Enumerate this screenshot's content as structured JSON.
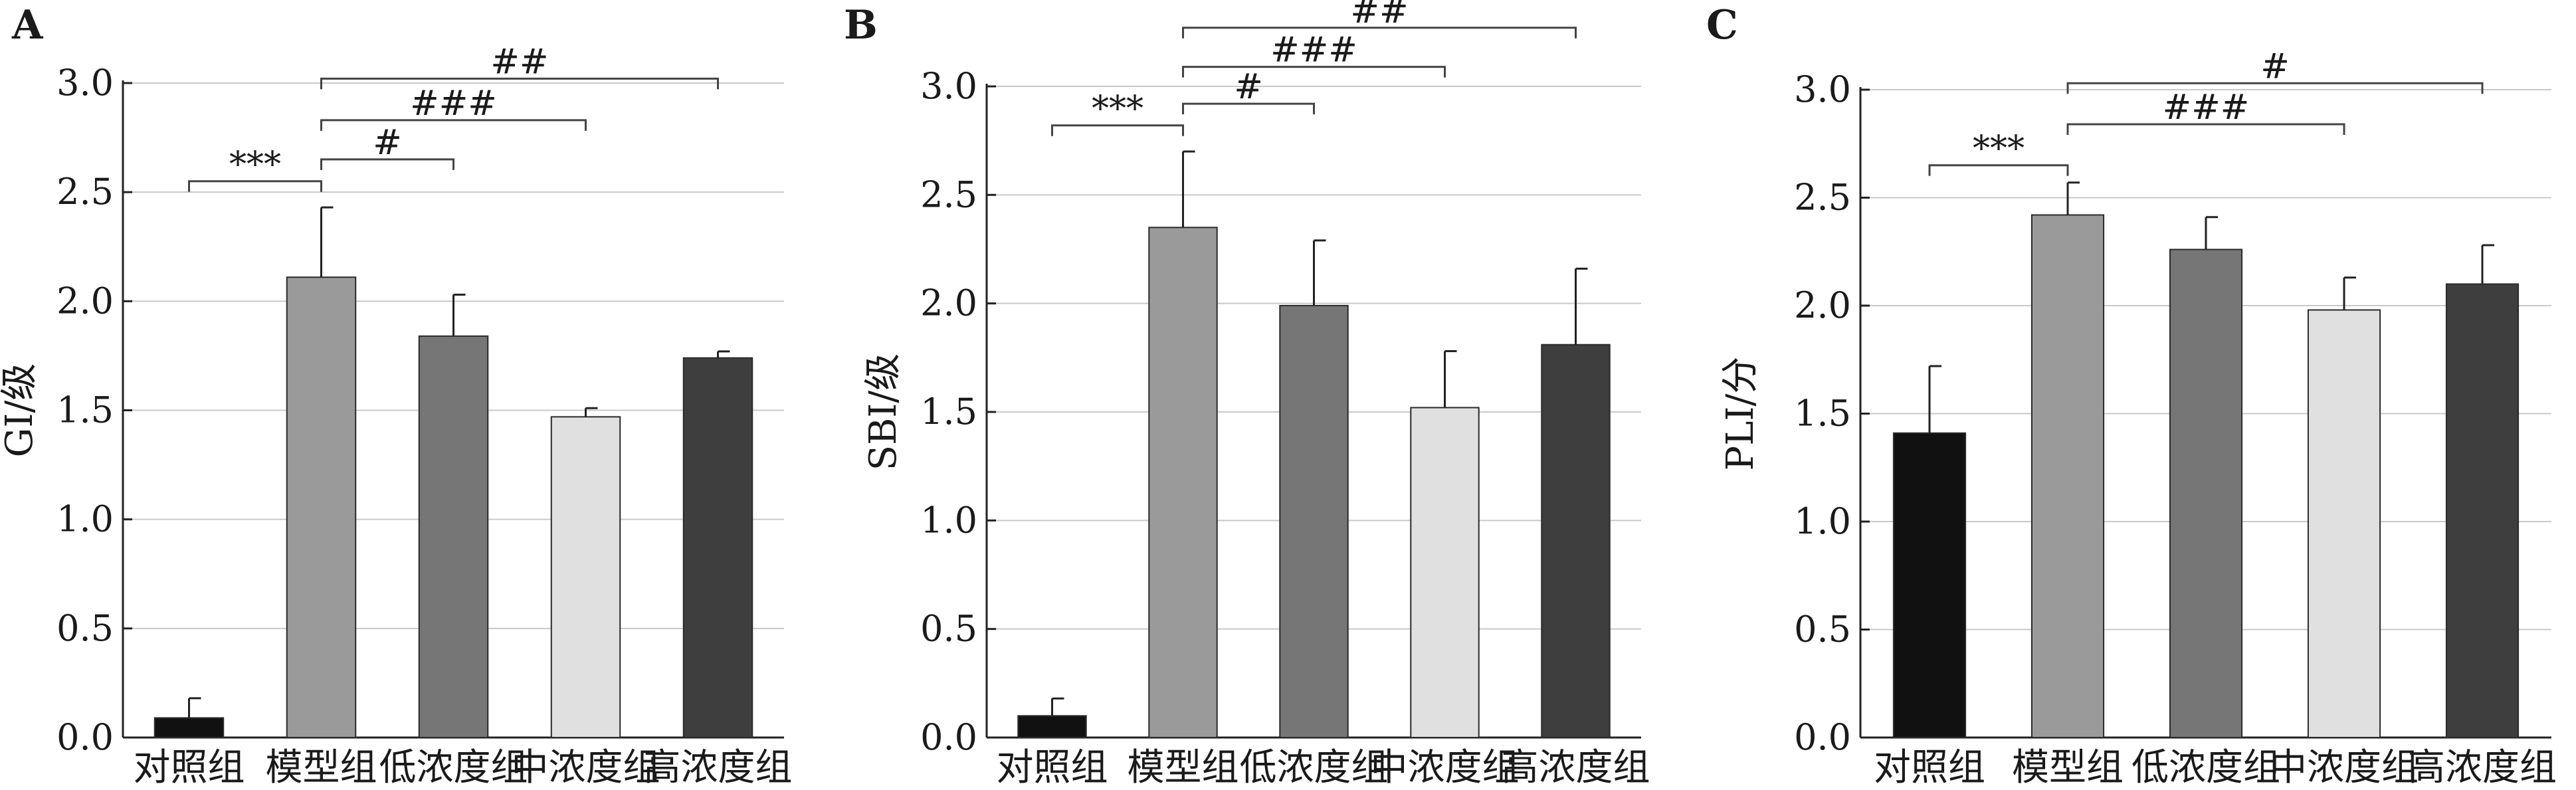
{
  "chart_data": [
    {
      "type": "bar",
      "panel": "A",
      "ylabel": "GI/级",
      "ylim": [
        0,
        3.0
      ],
      "yticks": [
        "0.0",
        "0.5",
        "1.0",
        "1.5",
        "2.0",
        "2.5",
        "3.0"
      ],
      "grid": true,
      "categories": [
        "对照组",
        "模型组",
        "低浓度组",
        "中浓度组",
        "高浓度组"
      ],
      "values": [
        0.09,
        2.11,
        1.84,
        1.47,
        1.74
      ],
      "errors": [
        0.09,
        0.32,
        0.19,
        0.04,
        0.03
      ],
      "colors": [
        "#111111",
        "#9a9a9a",
        "#767676",
        "#e0e0e0",
        "#3e3e3e"
      ],
      "significance": [
        {
          "from": 0,
          "to": 1,
          "label": "***",
          "level": 2.55
        },
        {
          "from": 1,
          "to": 2,
          "label": "#",
          "level": 2.65
        },
        {
          "from": 1,
          "to": 3,
          "label": "###",
          "level": 2.83
        },
        {
          "from": 1,
          "to": 4,
          "label": "##",
          "level": 3.02
        }
      ]
    },
    {
      "type": "bar",
      "panel": "B",
      "ylabel": "SBI/级",
      "ylim": [
        0,
        3.0
      ],
      "yticks": [
        "0.0",
        "0.5",
        "1.0",
        "1.5",
        "2.0",
        "2.5",
        "3.0"
      ],
      "grid": true,
      "categories": [
        "对照组",
        "模型组",
        "低浓度组",
        "中浓度组",
        "高浓度组"
      ],
      "values": [
        0.1,
        2.35,
        1.99,
        1.52,
        1.81
      ],
      "errors": [
        0.08,
        0.35,
        0.3,
        0.26,
        0.35
      ],
      "colors": [
        "#111111",
        "#9a9a9a",
        "#767676",
        "#e0e0e0",
        "#3e3e3e"
      ],
      "significance": [
        {
          "from": 0,
          "to": 1,
          "label": "***",
          "level": 2.82
        },
        {
          "from": 1,
          "to": 2,
          "label": "#",
          "level": 2.92
        },
        {
          "from": 1,
          "to": 3,
          "label": "###",
          "level": 3.09
        },
        {
          "from": 1,
          "to": 4,
          "label": "##",
          "level": 3.27
        }
      ]
    },
    {
      "type": "bar",
      "panel": "C",
      "ylabel": "PLI/分",
      "ylim": [
        0,
        3.0
      ],
      "yticks": [
        "0.0",
        "0.5",
        "1.0",
        "1.5",
        "2.0",
        "2.5",
        "3.0"
      ],
      "grid": true,
      "categories": [
        "对照组",
        "模型组",
        "低浓度组",
        "中浓度组",
        "高浓度组"
      ],
      "values": [
        1.41,
        2.42,
        2.26,
        1.98,
        2.1
      ],
      "errors": [
        0.31,
        0.15,
        0.15,
        0.15,
        0.18
      ],
      "colors": [
        "#111111",
        "#9a9a9a",
        "#767676",
        "#e0e0e0",
        "#3e3e3e"
      ],
      "significance": [
        {
          "from": 0,
          "to": 1,
          "label": "***",
          "level": 2.65
        },
        {
          "from": 1,
          "to": 3,
          "label": "###",
          "level": 2.84
        },
        {
          "from": 1,
          "to": 4,
          "label": "#",
          "level": 3.03
        }
      ]
    }
  ]
}
